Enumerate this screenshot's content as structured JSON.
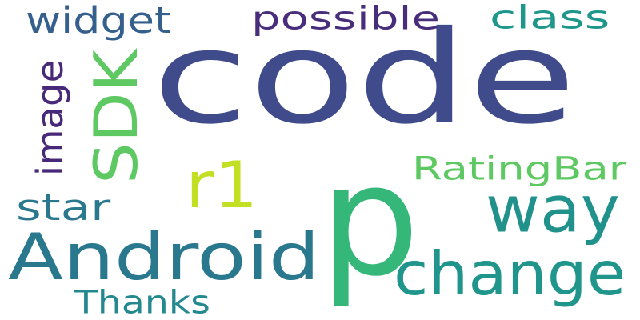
{
  "word_cloud": {
    "words": [
      {
        "text": "code",
        "color": "#3f4b8a"
      },
      {
        "text": "p",
        "color": "#35b779"
      },
      {
        "text": "Android",
        "color": "#2a788e"
      },
      {
        "text": "change",
        "color": "#1f958b"
      },
      {
        "text": "way",
        "color": "#21918c"
      },
      {
        "text": "SDK",
        "color": "#5ec962"
      },
      {
        "text": "r1",
        "color": "#c2df23"
      },
      {
        "text": "RatingBar",
        "color": "#5ec962"
      },
      {
        "text": "widget",
        "color": "#355f8d"
      },
      {
        "text": "possible",
        "color": "#472d7b"
      },
      {
        "text": "class",
        "color": "#1f968b"
      },
      {
        "text": "image",
        "color": "#482878"
      },
      {
        "text": "star",
        "color": "#2a788e"
      },
      {
        "text": "Thanks",
        "color": "#23898e"
      }
    ]
  }
}
